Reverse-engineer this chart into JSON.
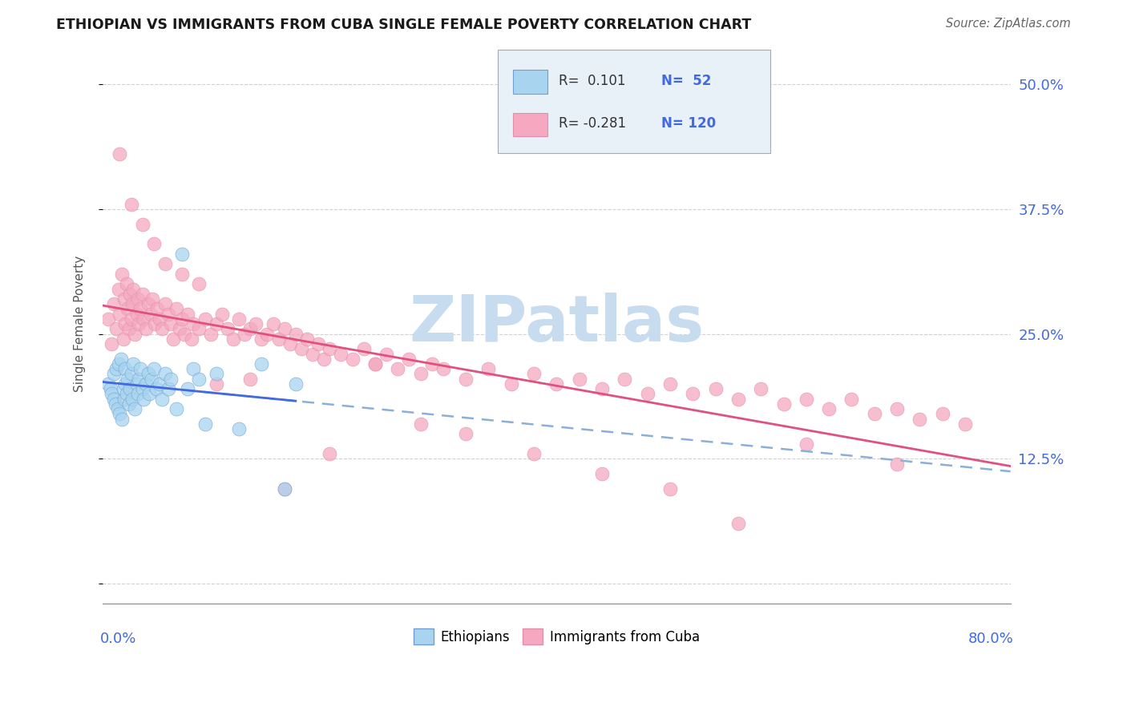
{
  "title": "ETHIOPIAN VS IMMIGRANTS FROM CUBA SINGLE FEMALE POVERTY CORRELATION CHART",
  "source": "Source: ZipAtlas.com",
  "ylabel": "Single Female Poverty",
  "yticks": [
    0.0,
    0.125,
    0.25,
    0.375,
    0.5
  ],
  "ytick_labels_right": [
    "",
    "12.5%",
    "25.0%",
    "37.5%",
    "50.0%"
  ],
  "xlim": [
    0.0,
    0.8
  ],
  "ylim": [
    -0.02,
    0.54
  ],
  "color_ethiopian": "#A8D4F0",
  "color_cuba": "#F5A8C0",
  "color_trendline_eth_solid": "#4169E1",
  "color_trendline_eth_dashed": "#8AB0D8",
  "color_trendline_cuba": "#E05080",
  "axis_label_color": "#4169E1",
  "watermark_color": "#C8DCF0",
  "background_color": "#FFFFFF",
  "legend_box_color": "#E8F0F8",
  "ethiopian_x": [
    0.005,
    0.007,
    0.008,
    0.01,
    0.01,
    0.011,
    0.012,
    0.013,
    0.014,
    0.015,
    0.016,
    0.017,
    0.018,
    0.019,
    0.02,
    0.02,
    0.021,
    0.022,
    0.023,
    0.024,
    0.025,
    0.026,
    0.027,
    0.028,
    0.03,
    0.031,
    0.032,
    0.033,
    0.035,
    0.036,
    0.038,
    0.04,
    0.041,
    0.043,
    0.045,
    0.047,
    0.05,
    0.052,
    0.055,
    0.058,
    0.06,
    0.065,
    0.07,
    0.075,
    0.08,
    0.085,
    0.09,
    0.1,
    0.12,
    0.14,
    0.16,
    0.17
  ],
  "ethiopian_y": [
    0.2,
    0.195,
    0.19,
    0.185,
    0.21,
    0.18,
    0.215,
    0.175,
    0.22,
    0.17,
    0.225,
    0.165,
    0.195,
    0.185,
    0.2,
    0.215,
    0.19,
    0.205,
    0.18,
    0.195,
    0.21,
    0.185,
    0.22,
    0.175,
    0.2,
    0.19,
    0.205,
    0.215,
    0.195,
    0.185,
    0.2,
    0.21,
    0.19,
    0.205,
    0.215,
    0.195,
    0.2,
    0.185,
    0.21,
    0.195,
    0.205,
    0.175,
    0.33,
    0.195,
    0.215,
    0.205,
    0.16,
    0.21,
    0.155,
    0.22,
    0.095,
    0.2
  ],
  "cuba_x": [
    0.005,
    0.008,
    0.01,
    0.012,
    0.014,
    0.015,
    0.017,
    0.018,
    0.019,
    0.02,
    0.021,
    0.022,
    0.023,
    0.024,
    0.025,
    0.026,
    0.027,
    0.028,
    0.03,
    0.031,
    0.032,
    0.033,
    0.035,
    0.036,
    0.038,
    0.04,
    0.042,
    0.044,
    0.046,
    0.048,
    0.05,
    0.052,
    0.055,
    0.058,
    0.06,
    0.062,
    0.065,
    0.068,
    0.07,
    0.072,
    0.075,
    0.078,
    0.08,
    0.085,
    0.09,
    0.095,
    0.1,
    0.105,
    0.11,
    0.115,
    0.12,
    0.125,
    0.13,
    0.135,
    0.14,
    0.145,
    0.15,
    0.155,
    0.16,
    0.165,
    0.17,
    0.175,
    0.18,
    0.185,
    0.19,
    0.195,
    0.2,
    0.21,
    0.22,
    0.23,
    0.24,
    0.25,
    0.26,
    0.27,
    0.28,
    0.29,
    0.3,
    0.32,
    0.34,
    0.36,
    0.38,
    0.4,
    0.42,
    0.44,
    0.46,
    0.48,
    0.5,
    0.52,
    0.54,
    0.56,
    0.58,
    0.6,
    0.62,
    0.64,
    0.66,
    0.68,
    0.7,
    0.72,
    0.74,
    0.76,
    0.015,
    0.025,
    0.035,
    0.045,
    0.055,
    0.07,
    0.085,
    0.1,
    0.13,
    0.16,
    0.2,
    0.24,
    0.28,
    0.32,
    0.38,
    0.44,
    0.5,
    0.56,
    0.62,
    0.7
  ],
  "cuba_y": [
    0.265,
    0.24,
    0.28,
    0.255,
    0.295,
    0.27,
    0.31,
    0.245,
    0.285,
    0.26,
    0.3,
    0.275,
    0.255,
    0.29,
    0.265,
    0.28,
    0.295,
    0.25,
    0.27,
    0.285,
    0.26,
    0.275,
    0.29,
    0.265,
    0.255,
    0.28,
    0.27,
    0.285,
    0.26,
    0.275,
    0.265,
    0.255,
    0.28,
    0.27,
    0.26,
    0.245,
    0.275,
    0.255,
    0.265,
    0.25,
    0.27,
    0.245,
    0.26,
    0.255,
    0.265,
    0.25,
    0.26,
    0.27,
    0.255,
    0.245,
    0.265,
    0.25,
    0.255,
    0.26,
    0.245,
    0.25,
    0.26,
    0.245,
    0.255,
    0.24,
    0.25,
    0.235,
    0.245,
    0.23,
    0.24,
    0.225,
    0.235,
    0.23,
    0.225,
    0.235,
    0.22,
    0.23,
    0.215,
    0.225,
    0.21,
    0.22,
    0.215,
    0.205,
    0.215,
    0.2,
    0.21,
    0.2,
    0.205,
    0.195,
    0.205,
    0.19,
    0.2,
    0.19,
    0.195,
    0.185,
    0.195,
    0.18,
    0.185,
    0.175,
    0.185,
    0.17,
    0.175,
    0.165,
    0.17,
    0.16,
    0.43,
    0.38,
    0.36,
    0.34,
    0.32,
    0.31,
    0.3,
    0.2,
    0.205,
    0.095,
    0.13,
    0.22,
    0.16,
    0.15,
    0.13,
    0.11,
    0.095,
    0.06,
    0.14,
    0.12
  ]
}
